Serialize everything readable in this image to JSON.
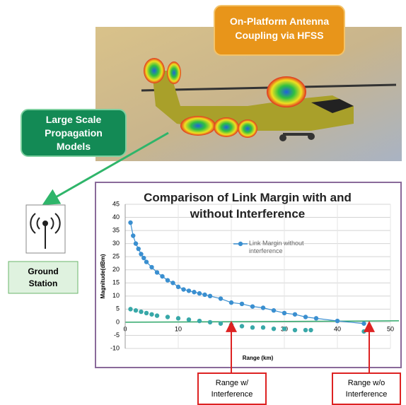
{
  "callouts": {
    "hfss": [
      "On-Platform Antenna",
      "Coupling via HFSS"
    ],
    "propagation": [
      "Large Scale",
      "Propagation",
      "Models"
    ],
    "ground_station": [
      "Ground",
      "Station"
    ]
  },
  "chart_data": {
    "type": "scatter",
    "title": "Comparison of Link Margin with and without Interference",
    "x_label": "Range (km)",
    "y_label": "Magnitude(dBm)",
    "xlim": [
      0,
      50
    ],
    "xticks": [
      0,
      10,
      20,
      30,
      40,
      50
    ],
    "ylim": [
      -10,
      45
    ],
    "yticks": [
      -10,
      -5,
      0,
      5,
      10,
      15,
      20,
      25,
      30,
      35,
      40,
      45
    ],
    "grid": true,
    "series": [
      {
        "name": "Link Margin without interference",
        "color": "#3a8fd0",
        "line": true,
        "x": [
          1,
          1.5,
          2,
          2.5,
          3,
          3.5,
          4,
          5,
          6,
          7,
          8,
          9,
          10,
          11,
          12,
          13,
          14,
          15,
          16,
          18,
          20,
          22,
          24,
          26,
          28,
          30,
          32,
          34,
          36,
          40,
          45
        ],
        "values": [
          38,
          33,
          30,
          28,
          26,
          24.5,
          23,
          21,
          19,
          17.5,
          16,
          15,
          13.5,
          12.5,
          12,
          11.5,
          11,
          10.5,
          10,
          9,
          7.5,
          7,
          6,
          5.5,
          4.5,
          3.5,
          3,
          2,
          1.5,
          0.5,
          -0.5
        ]
      },
      {
        "color": "#38a8a8",
        "line": false,
        "x": [
          1,
          2,
          3,
          4,
          5,
          6,
          8,
          10,
          12,
          14,
          16,
          18,
          20,
          22,
          24,
          26,
          28,
          30,
          32,
          34,
          35,
          45
        ],
        "values": [
          5,
          4.5,
          4,
          3.5,
          3,
          2.5,
          2,
          1.5,
          1,
          0.5,
          0,
          -0.5,
          -1,
          -1.5,
          -2,
          -2,
          -2.5,
          -2.5,
          -3,
          -3,
          -3,
          -3.5
        ]
      }
    ],
    "annotations": [
      {
        "x": 20,
        "text": [
          "Range w/",
          "Interference"
        ]
      },
      {
        "x": 46,
        "text": [
          "Range w/o",
          "Interference"
        ]
      }
    ]
  }
}
